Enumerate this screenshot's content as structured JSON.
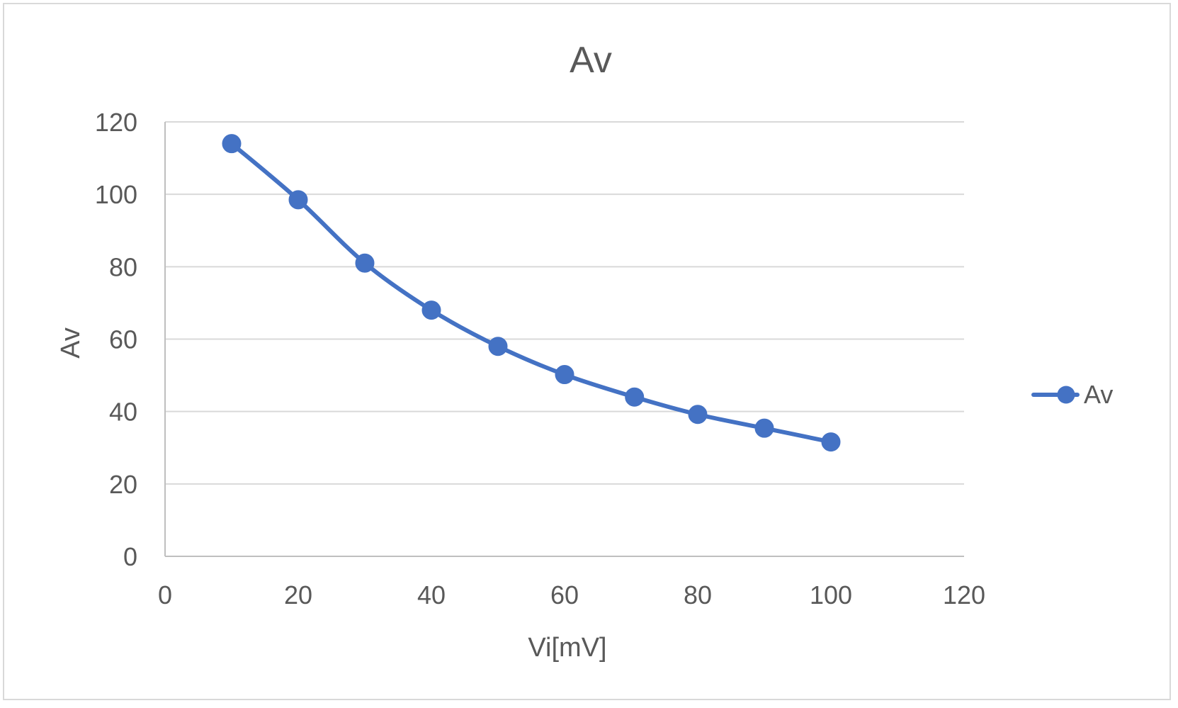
{
  "chart_data": {
    "type": "scatter",
    "title": "Av",
    "xlabel": "Vi[mV]",
    "ylabel": "Av",
    "xlim": [
      0,
      120
    ],
    "ylim": [
      0,
      120
    ],
    "x_ticks": [
      0,
      20,
      40,
      60,
      80,
      100,
      120
    ],
    "y_ticks": [
      0,
      20,
      40,
      60,
      80,
      100,
      120
    ],
    "grid": "horizontal major gridlines",
    "legend_position": "right",
    "series": [
      {
        "name": "Av",
        "color": "#4472c4",
        "marker": "circle",
        "line": "smooth",
        "x": [
          10,
          20,
          30,
          40,
          50,
          60,
          70.5,
          80,
          90,
          100
        ],
        "y": [
          114,
          98.5,
          81,
          68,
          58,
          50.2,
          44,
          39.2,
          35.4,
          31.6
        ]
      }
    ]
  }
}
